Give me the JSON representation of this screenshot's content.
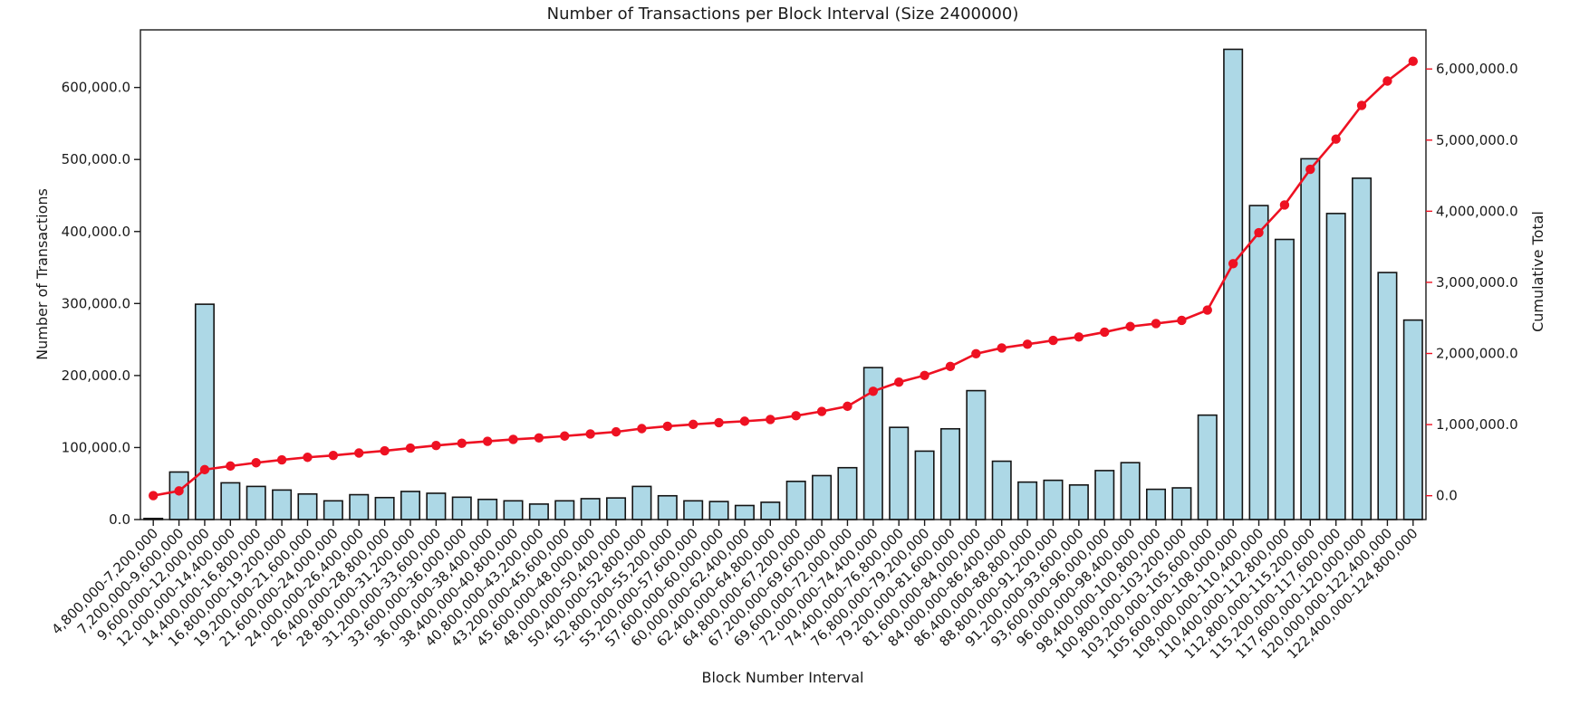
{
  "chart_data": {
    "type": "bar",
    "combo": "bar+line",
    "title": "Number of Transactions per Block Interval (Size 2400000)",
    "xlabel": "Block Number Interval",
    "ylabel_left": "Number of Transactions",
    "ylabel_right": "Cumulative Total",
    "grid": false,
    "legend": "none",
    "colors": {
      "bar_fill": "#add8e6",
      "bar_edge": "#141414",
      "line_red": "#ee1122",
      "text": "#1a1a1a"
    },
    "categories": [
      "4,800,000-7,200,000",
      "7,200,000-9,600,000",
      "9,600,000-12,000,000",
      "12,000,000-14,400,000",
      "14,400,000-16,800,000",
      "16,800,000-19,200,000",
      "19,200,000-21,600,000",
      "21,600,000-24,000,000",
      "24,000,000-26,400,000",
      "26,400,000-28,800,000",
      "28,800,000-31,200,000",
      "31,200,000-33,600,000",
      "33,600,000-36,000,000",
      "36,000,000-38,400,000",
      "38,400,000-40,800,000",
      "40,800,000-43,200,000",
      "43,200,000-45,600,000",
      "45,600,000-48,000,000",
      "48,000,000-50,400,000",
      "50,400,000-52,800,000",
      "52,800,000-55,200,000",
      "55,200,000-57,600,000",
      "57,600,000-60,000,000",
      "60,000,000-62,400,000",
      "62,400,000-64,800,000",
      "64,800,000-67,200,000",
      "67,200,000-69,600,000",
      "69,600,000-72,000,000",
      "72,000,000-74,400,000",
      "74,400,000-76,800,000",
      "76,800,000-79,200,000",
      "79,200,000-81,600,000",
      "81,600,000-84,000,000",
      "84,000,000-86,400,000",
      "86,400,000-88,800,000",
      "88,800,000-91,200,000",
      "91,200,000-93,600,000",
      "93,600,000-96,000,000",
      "96,000,000-98,400,000",
      "98,400,000-100,800,000",
      "100,800,000-103,200,000",
      "103,200,000-105,600,000",
      "105,600,000-108,000,000",
      "108,000,000-110,400,000",
      "110,400,000-112,800,000",
      "112,800,000-115,200,000",
      "115,200,000-117,600,000",
      "117,600,000-120,000,000",
      "120,000,000-122,400,000",
      "122,400,000-124,800,000"
    ],
    "series": [
      {
        "name": "Number of Transactions",
        "type": "bar",
        "axis": "left",
        "color": "#add8e6",
        "edge_color": "#141414",
        "values": [
          1500,
          66000,
          299000,
          51000,
          46000,
          41000,
          35500,
          26000,
          34500,
          30500,
          39000,
          36500,
          31000,
          28000,
          26000,
          21500,
          26000,
          29000,
          30000,
          46000,
          33000,
          26000,
          25000,
          19500,
          24000,
          53000,
          61000,
          72000,
          211000,
          128000,
          95000,
          126000,
          179000,
          81000,
          52000,
          54500,
          48000,
          68000,
          79000,
          42000,
          44000,
          145000,
          653000,
          436000,
          389000,
          501000,
          425000,
          474000,
          343000,
          277000
        ]
      },
      {
        "name": "Cumulative Total",
        "type": "line",
        "axis": "right",
        "color": "#ee1122",
        "marker": "circle",
        "values": [
          1500,
          67500,
          366500,
          417500,
          463500,
          504500,
          540000,
          566000,
          600500,
          631000,
          670000,
          706500,
          737500,
          765500,
          791500,
          813000,
          839000,
          868000,
          898000,
          944000,
          977000,
          1003000,
          1028000,
          1047500,
          1071500,
          1124500,
          1185500,
          1257500,
          1468500,
          1596500,
          1691500,
          1817500,
          1996500,
          2077500,
          2129500,
          2184000,
          2232000,
          2300000,
          2379000,
          2421000,
          2465000,
          2610000,
          3263000,
          3699000,
          4088000,
          4589000,
          5014000,
          5488000,
          5831000,
          6108000
        ]
      }
    ],
    "left_axis": {
      "lim": [
        0,
        680000
      ],
      "ticks": [
        0,
        100000,
        200000,
        300000,
        400000,
        500000,
        600000
      ],
      "tick_labels": [
        "0.0",
        "100,000.0",
        "200,000.0",
        "300,000.0",
        "400,000.0",
        "500,000.0",
        "600,000.0"
      ]
    },
    "right_axis": {
      "lim": [
        -335000,
        6550000
      ],
      "color": "#ee1122",
      "ticks": [
        0,
        1000000,
        2000000,
        3000000,
        4000000,
        5000000,
        6000000
      ],
      "tick_labels": [
        "0.0",
        "1,000,000.0",
        "2,000,000.0",
        "3,000,000.0",
        "4,000,000.0",
        "5,000,000.0",
        "6,000,000.0"
      ]
    }
  }
}
